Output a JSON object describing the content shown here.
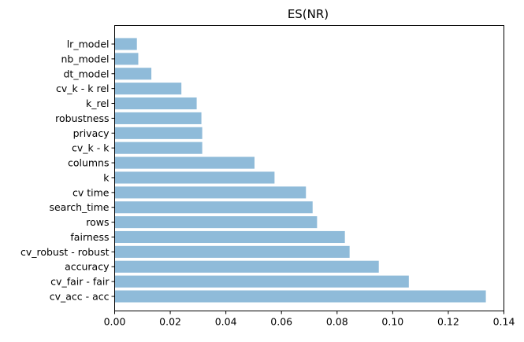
{
  "chart_data": {
    "type": "bar",
    "orientation": "horizontal",
    "title": "ES(NR)",
    "xlabel": "",
    "ylabel": "",
    "categories": [
      "cv_acc - acc",
      "cv_fair - fair",
      "accuracy",
      "cv_robust - robust",
      "fairness",
      "rows",
      "search_time",
      "cv time",
      "k",
      "columns",
      "cv_k - k",
      "privacy",
      "robustness",
      "k_rel",
      "cv_k - k rel",
      "dt_model",
      "nb_model",
      "lr_model"
    ],
    "values": [
      0.1335,
      0.1058,
      0.095,
      0.0845,
      0.0828,
      0.0728,
      0.0712,
      0.0688,
      0.0575,
      0.0503,
      0.0315,
      0.0315,
      0.0312,
      0.0295,
      0.024,
      0.0132,
      0.0085,
      0.008
    ],
    "xlim": [
      0,
      0.14
    ],
    "xticks": [
      "0.00",
      "0.02",
      "0.04",
      "0.06",
      "0.08",
      "0.10",
      "0.12",
      "0.14"
    ],
    "grid": false,
    "bar_color": "#1f77b4"
  }
}
